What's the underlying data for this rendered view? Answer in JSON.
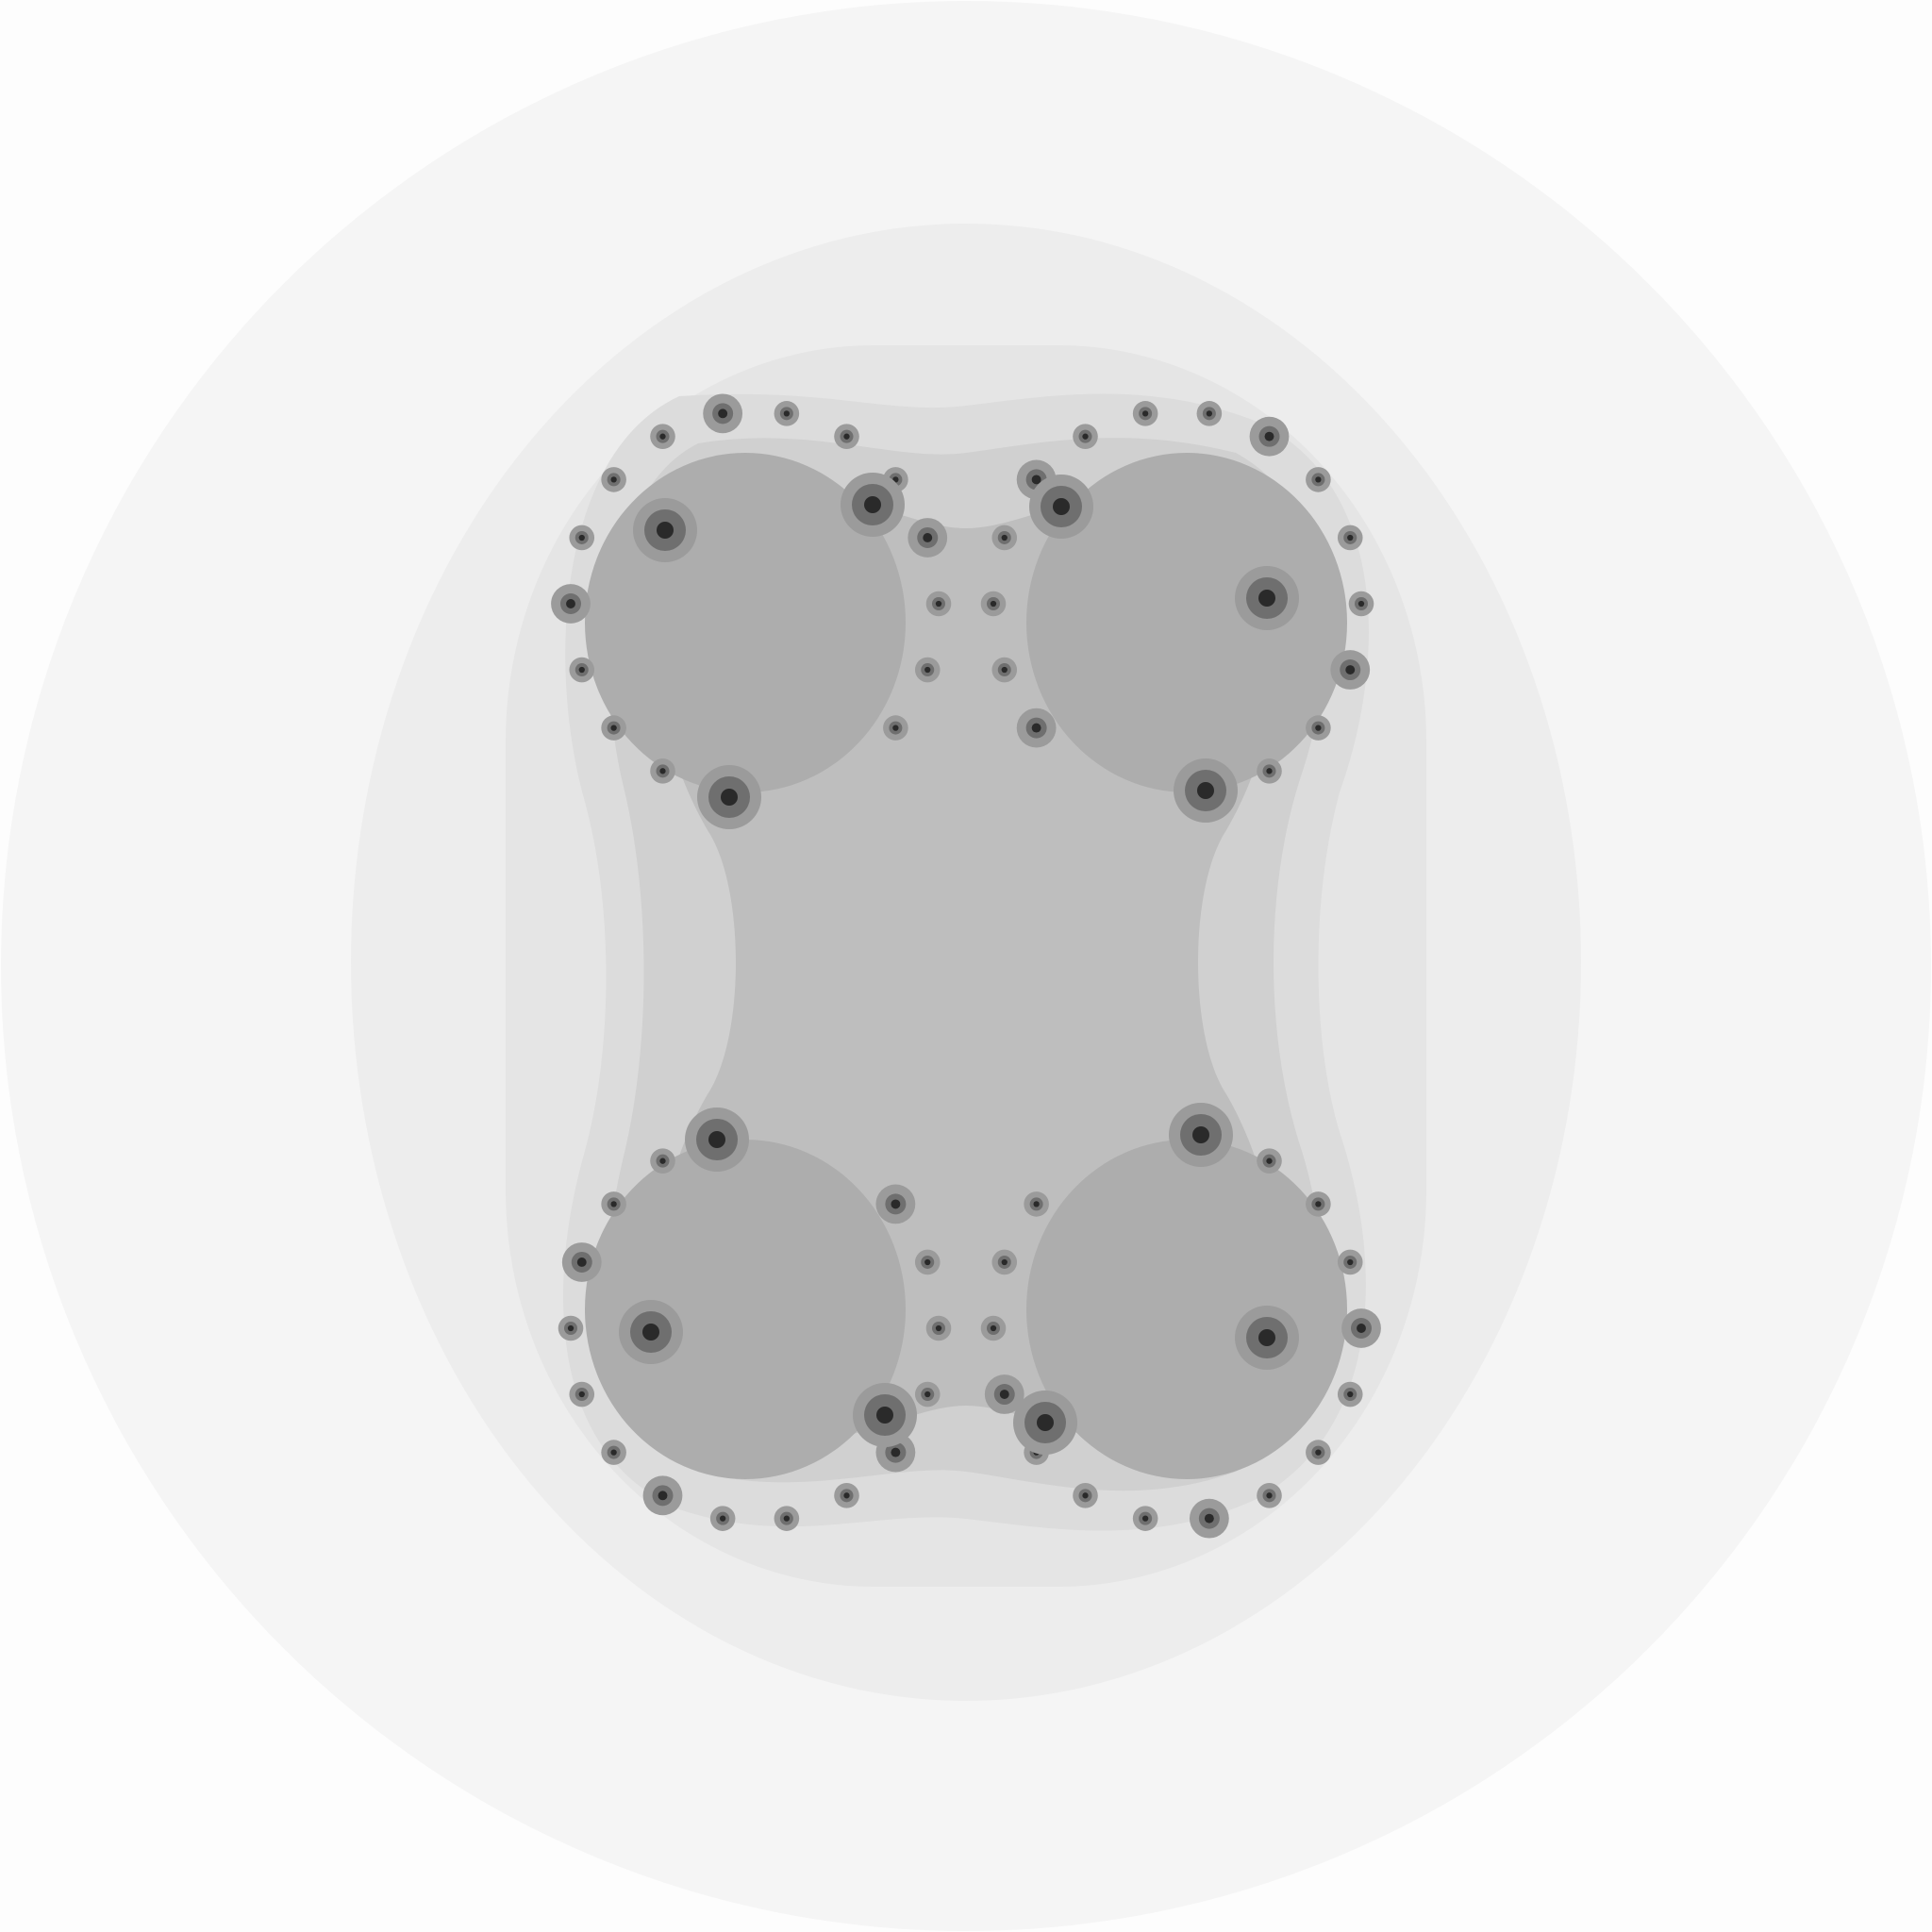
{
  "image": {
    "kind": "fractal escape-time rendering",
    "palette": {
      "background": "#fdfdfd",
      "band_1": "#f5f5f5",
      "band_2": "#ededed",
      "band_3": "#e5e5e5",
      "band_4": "#dcdcdc",
      "band_5": "#d0d0d0",
      "interior": "#bebebe",
      "lobe": "#adadad",
      "lobe_dark": "#9b9b9b",
      "spiral": "#6f6f6f",
      "spiral_core": "#2a2a2a"
    }
  }
}
